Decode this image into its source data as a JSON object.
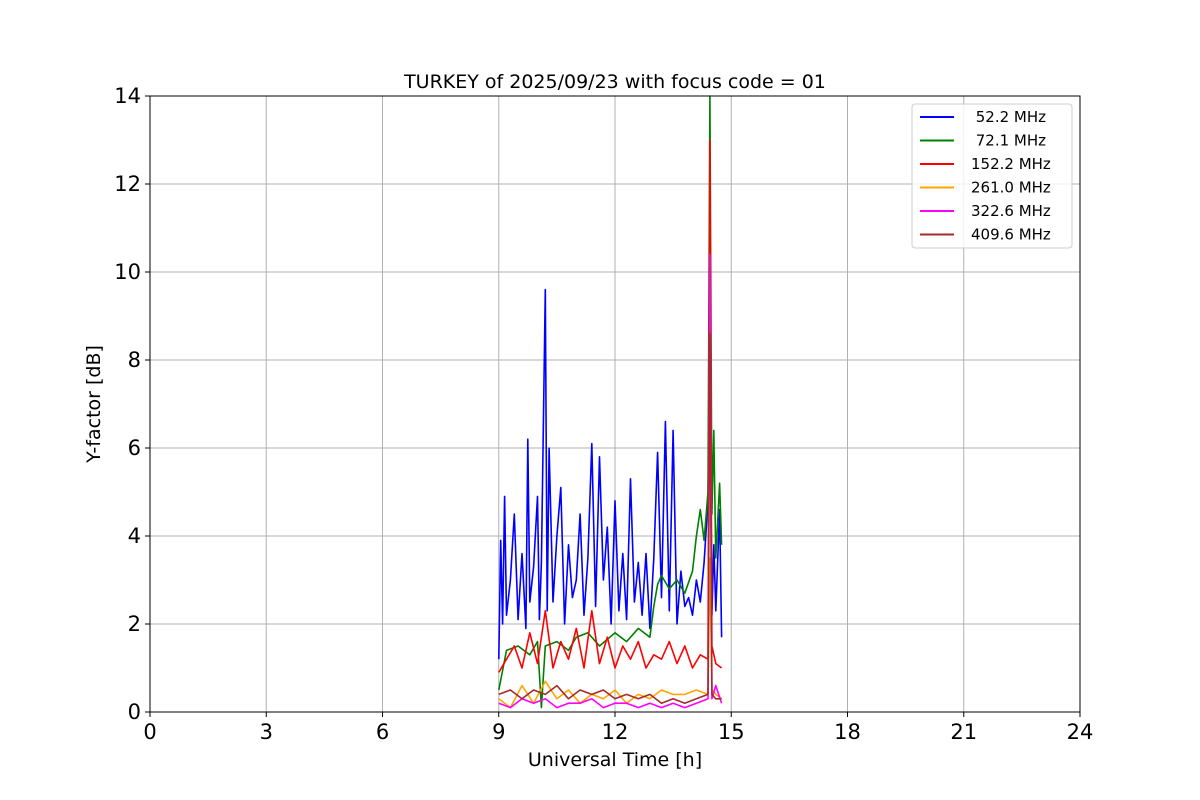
{
  "chart_data": {
    "type": "line",
    "title": "TURKEY of 2025/09/23 with focus code = 01",
    "xlabel": "Universal Time [h]",
    "ylabel": "Y-factor [dB]",
    "xlim": [
      0,
      24
    ],
    "ylim": [
      0,
      14
    ],
    "xticks": [
      0,
      3,
      6,
      9,
      12,
      15,
      18,
      21,
      24
    ],
    "yticks": [
      0,
      2,
      4,
      6,
      8,
      10,
      12,
      14
    ],
    "grid": true,
    "legend_position": "upper right",
    "series": [
      {
        "name": " 52.2 MHz",
        "color": "#0000ff",
        "x": [
          9.0,
          9.05,
          9.1,
          9.15,
          9.2,
          9.3,
          9.4,
          9.5,
          9.6,
          9.7,
          9.75,
          9.8,
          9.9,
          10.0,
          10.05,
          10.1,
          10.2,
          10.25,
          10.3,
          10.4,
          10.5,
          10.6,
          10.7,
          10.8,
          10.9,
          11.0,
          11.1,
          11.2,
          11.3,
          11.4,
          11.5,
          11.6,
          11.7,
          11.8,
          11.9,
          12.0,
          12.1,
          12.2,
          12.3,
          12.4,
          12.5,
          12.6,
          12.7,
          12.8,
          12.9,
          13.0,
          13.1,
          13.2,
          13.3,
          13.4,
          13.5,
          13.6,
          13.7,
          13.8,
          13.9,
          14.0,
          14.1,
          14.2,
          14.3,
          14.4,
          14.45,
          14.5,
          14.55,
          14.6,
          14.7,
          14.75
        ],
        "y": [
          1.2,
          3.9,
          2.0,
          4.9,
          2.2,
          3.0,
          4.5,
          2.1,
          3.6,
          1.9,
          6.2,
          2.5,
          3.3,
          4.9,
          2.1,
          3.4,
          9.6,
          2.3,
          6.0,
          2.5,
          4.0,
          5.1,
          2.0,
          3.8,
          2.6,
          3.0,
          4.5,
          2.2,
          3.5,
          6.1,
          2.4,
          5.8,
          3.0,
          4.2,
          2.0,
          4.8,
          2.3,
          3.6,
          2.1,
          5.3,
          2.5,
          3.4,
          2.2,
          3.6,
          1.9,
          3.5,
          5.9,
          2.6,
          6.6,
          2.3,
          6.4,
          2.0,
          3.2,
          2.4,
          2.6,
          2.2,
          3.0,
          2.5,
          3.4,
          4.8,
          8.2,
          2.2,
          3.8,
          2.3,
          4.6,
          1.7
        ]
      },
      {
        "name": " 72.1 MHz",
        "color": "#008000",
        "x": [
          9.0,
          9.2,
          9.5,
          9.8,
          10.0,
          10.1,
          10.2,
          10.5,
          10.8,
          11.0,
          11.3,
          11.6,
          12.0,
          12.3,
          12.6,
          12.9,
          13.0,
          13.1,
          13.2,
          13.4,
          13.6,
          13.8,
          14.0,
          14.1,
          14.2,
          14.3,
          14.4,
          14.45,
          14.5,
          14.55,
          14.6,
          14.7,
          14.75
        ],
        "y": [
          0.5,
          1.4,
          1.5,
          1.3,
          1.6,
          0.1,
          1.5,
          1.6,
          1.4,
          1.7,
          1.8,
          1.5,
          1.8,
          1.6,
          1.9,
          1.7,
          2.4,
          2.9,
          3.1,
          2.8,
          3.0,
          2.7,
          3.2,
          4.0,
          4.6,
          3.9,
          5.0,
          14.0,
          4.5,
          6.4,
          3.5,
          5.2,
          3.8
        ]
      },
      {
        "name": "152.2 MHz",
        "color": "#ff0000",
        "x": [
          9.0,
          9.2,
          9.4,
          9.6,
          9.8,
          10.0,
          10.2,
          10.4,
          10.6,
          10.8,
          11.0,
          11.2,
          11.4,
          11.6,
          11.8,
          12.0,
          12.2,
          12.4,
          12.6,
          12.8,
          13.0,
          13.2,
          13.4,
          13.6,
          13.8,
          14.0,
          14.2,
          14.4,
          14.45,
          14.5,
          14.6,
          14.75
        ],
        "y": [
          0.9,
          1.2,
          1.5,
          1.0,
          1.8,
          1.1,
          2.3,
          1.0,
          1.6,
          1.2,
          1.9,
          1.0,
          2.3,
          1.1,
          1.7,
          1.0,
          1.5,
          1.2,
          1.6,
          1.0,
          1.3,
          1.2,
          1.6,
          1.1,
          1.5,
          1.0,
          1.3,
          1.2,
          13.0,
          1.5,
          1.1,
          1.0
        ]
      },
      {
        "name": "261.0 MHz",
        "color": "#ffa500",
        "x": [
          9.0,
          9.3,
          9.6,
          9.9,
          10.2,
          10.5,
          10.8,
          11.1,
          11.4,
          11.7,
          12.0,
          12.3,
          12.6,
          12.9,
          13.2,
          13.5,
          13.8,
          14.1,
          14.4,
          14.45,
          14.5,
          14.6,
          14.75
        ],
        "y": [
          0.3,
          0.1,
          0.6,
          0.2,
          0.7,
          0.3,
          0.5,
          0.2,
          0.4,
          0.3,
          0.5,
          0.2,
          0.4,
          0.3,
          0.5,
          0.4,
          0.4,
          0.5,
          0.4,
          3.5,
          0.5,
          0.4,
          0.3
        ]
      },
      {
        "name": "322.6 MHz",
        "color": "#ff00ff",
        "x": [
          9.0,
          9.3,
          9.6,
          9.9,
          10.2,
          10.5,
          10.8,
          11.1,
          11.4,
          11.7,
          12.0,
          12.3,
          12.6,
          12.9,
          13.2,
          13.5,
          13.8,
          14.1,
          14.4,
          14.45,
          14.5,
          14.6,
          14.75
        ],
        "y": [
          0.2,
          0.1,
          0.3,
          0.2,
          0.3,
          0.1,
          0.2,
          0.2,
          0.3,
          0.1,
          0.2,
          0.2,
          0.1,
          0.2,
          0.1,
          0.2,
          0.1,
          0.2,
          0.3,
          10.4,
          0.3,
          0.6,
          0.2
        ]
      },
      {
        "name": "409.6 MHz",
        "color": "#a52a2a",
        "x": [
          9.0,
          9.3,
          9.6,
          9.9,
          10.2,
          10.5,
          10.8,
          11.1,
          11.4,
          11.7,
          12.0,
          12.3,
          12.6,
          12.9,
          13.2,
          13.5,
          13.8,
          14.1,
          14.4,
          14.45,
          14.5,
          14.6,
          14.75
        ],
        "y": [
          0.4,
          0.5,
          0.3,
          0.5,
          0.4,
          0.6,
          0.3,
          0.5,
          0.4,
          0.5,
          0.3,
          0.4,
          0.3,
          0.4,
          0.2,
          0.3,
          0.2,
          0.3,
          0.4,
          8.6,
          0.4,
          0.3,
          0.3
        ]
      }
    ]
  }
}
